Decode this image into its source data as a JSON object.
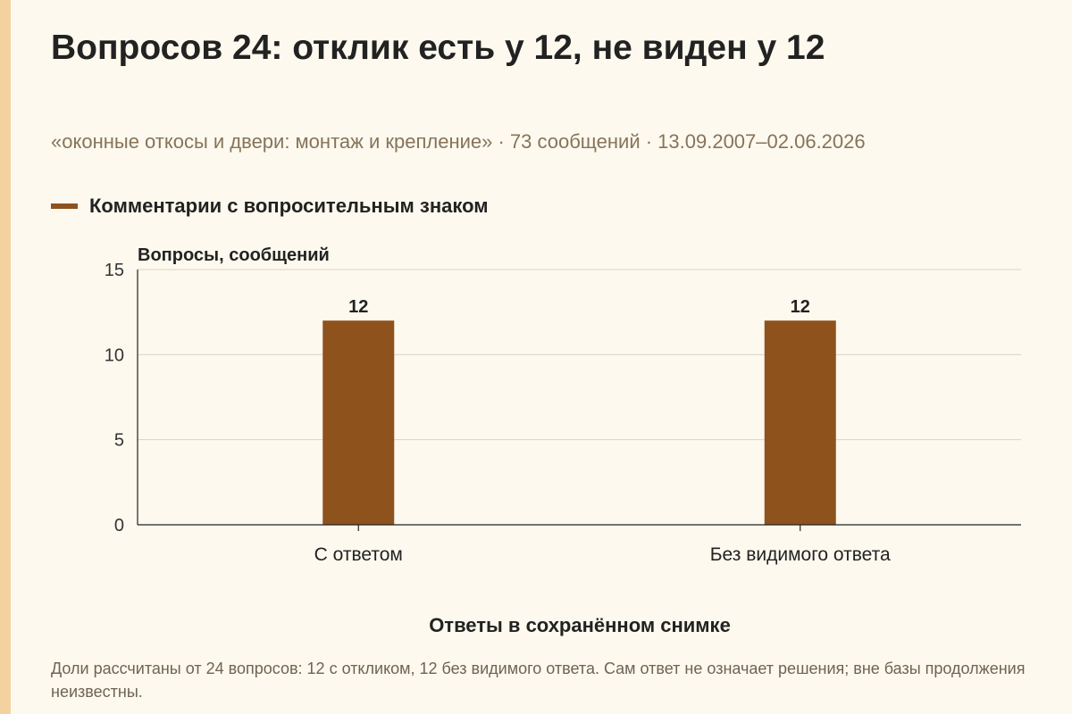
{
  "title": "Вопросов 24: отклик есть у 12, не виден у 12",
  "subtitle": "«оконные откосы и двери: монтаж и крепление» · 73 сообщений · 13.09.2007–02.06.2026",
  "footnote": "Доли рассчитаны от 24 вопросов: 12 с откликом, 12 без видимого ответа. Сам ответ не означает решения; вне базы продолжения неизвестны.",
  "colors": {
    "bar": "#8e521d",
    "accent_strip": "#f4d2a0",
    "subtitle": "#86745a",
    "grid": "#d9d4c7"
  },
  "chart_data": {
    "type": "bar",
    "categories": [
      "С ответом",
      "Без видимого ответа"
    ],
    "series": [
      {
        "name": "Комментарии с вопросительным знаком",
        "values": [
          12,
          12
        ],
        "color": "#8e521d"
      }
    ],
    "xlabel": "Ответы в сохранённом снимке",
    "ylabel": "Вопросы, сообщений",
    "ylim": [
      0,
      15
    ],
    "yticks": [
      0,
      5,
      10,
      15
    ],
    "data_labels": true,
    "grid": true,
    "legend_position": "top-left"
  }
}
